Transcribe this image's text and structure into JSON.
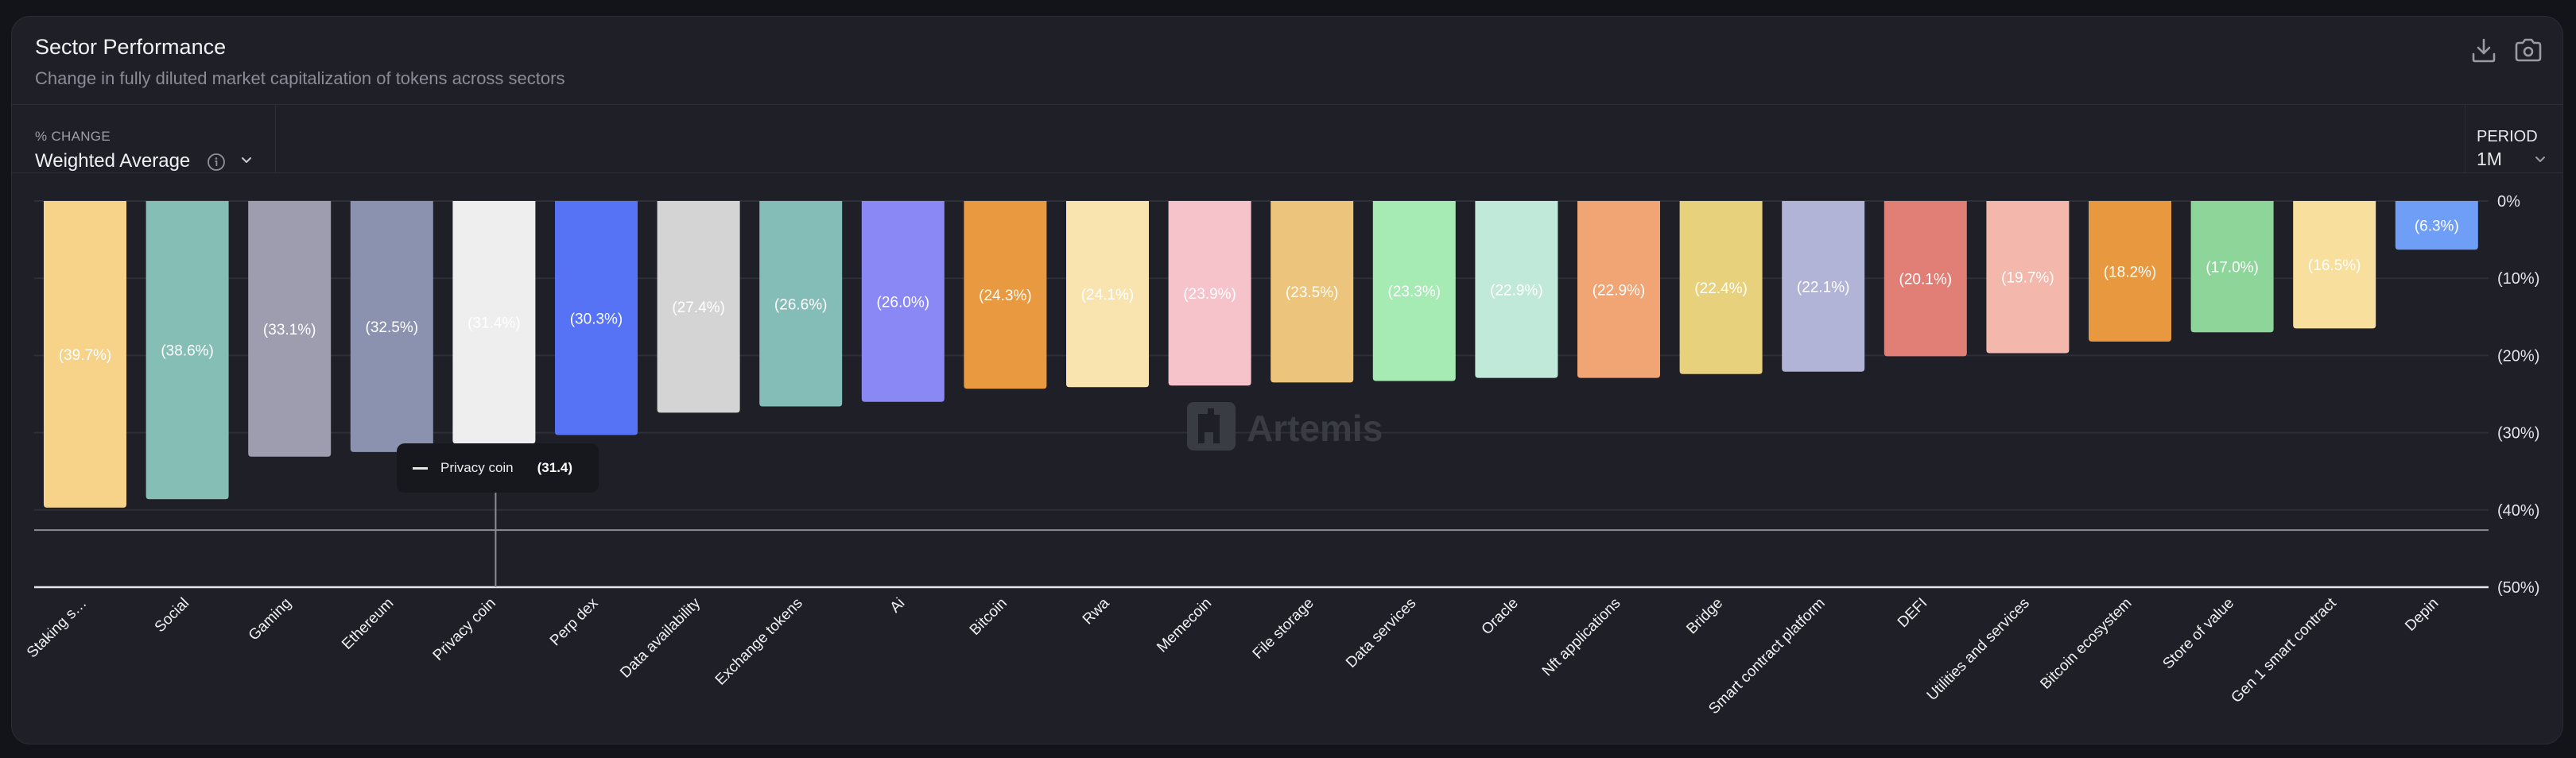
{
  "header": {
    "title": "Sector Performance",
    "subtitle": "Change in fully diluted market capitalization of tokens across sectors",
    "icons": [
      "download-icon",
      "camera-icon"
    ]
  },
  "controls": {
    "change_label": "% CHANGE",
    "change_value": "Weighted Average",
    "period_label": "PERIOD",
    "period_value": "1M"
  },
  "tooltip": {
    "series": "Privacy coin",
    "value": "(31.4)"
  },
  "watermark": "Artemis",
  "chart_data": {
    "type": "bar",
    "title": "Sector Performance",
    "subtitle": "Change in fully diluted market capitalization of tokens across sectors",
    "xlabel": "",
    "ylabel": "% CHANGE",
    "ylim": [
      -50,
      0
    ],
    "y_ticks": [
      0,
      -10,
      -20,
      -30,
      -40,
      -50
    ],
    "y_tick_labels": [
      "0%",
      "(10%)",
      "(20%)",
      "(30%)",
      "(40%)",
      "(50%)"
    ],
    "grid": true,
    "y_axis_position": "right",
    "categories": [
      "Staking s…",
      "Social",
      "Gaming",
      "Ethereum",
      "Privacy coin",
      "Perp dex",
      "Data availability",
      "Exchange tokens",
      "Ai",
      "Bitcoin",
      "Rwa",
      "Memecoin",
      "File storage",
      "Data services",
      "Oracle",
      "Nft applications",
      "Bridge",
      "Smart contract platform",
      "DEFI",
      "Utilities and services",
      "Bitcoin ecosystem",
      "Store of value",
      "Gen 1 smart contract",
      "Depin"
    ],
    "values": [
      -39.7,
      -38.6,
      -33.1,
      -32.5,
      -31.4,
      -30.3,
      -27.4,
      -26.6,
      -26.0,
      -24.3,
      -24.1,
      -23.9,
      -23.5,
      -23.3,
      -22.9,
      -22.9,
      -22.4,
      -22.1,
      -20.1,
      -19.7,
      -18.2,
      -17.0,
      -16.5,
      -6.3
    ],
    "data_labels": [
      "(39.7%)",
      "(38.6%)",
      "(33.1%)",
      "(32.5%)",
      "(31.4%)",
      "(30.3%)",
      "(27.4%)",
      "(26.6%)",
      "(26.0%)",
      "(24.3%)",
      "(24.1%)",
      "(23.9%)",
      "(23.5%)",
      "(23.3%)",
      "(22.9%)",
      "(22.9%)",
      "(22.4%)",
      "(22.1%)",
      "(20.1%)",
      "(19.7%)",
      "(18.2%)",
      "(17.0%)",
      "(16.5%)",
      "(6.3%)"
    ],
    "colors": [
      "#f7d389",
      "#84beb5",
      "#9d9daf",
      "#8b92b0",
      "#eeeeee",
      "#5672f5",
      "#d4d4d4",
      "#84bdb7",
      "#8a88f5",
      "#e99a40",
      "#f9e4b0",
      "#f6c3cb",
      "#ecc47c",
      "#a6ebb4",
      "#c0e9da",
      "#f1a474",
      "#e8d17c",
      "#b1b4d6",
      "#e17f76",
      "#f4b7ab",
      "#e8993f",
      "#8ed59a",
      "#f9df9e",
      "#6f9ef6"
    ],
    "crosshair": {
      "category": "Privacy coin",
      "value": -42.5
    }
  }
}
